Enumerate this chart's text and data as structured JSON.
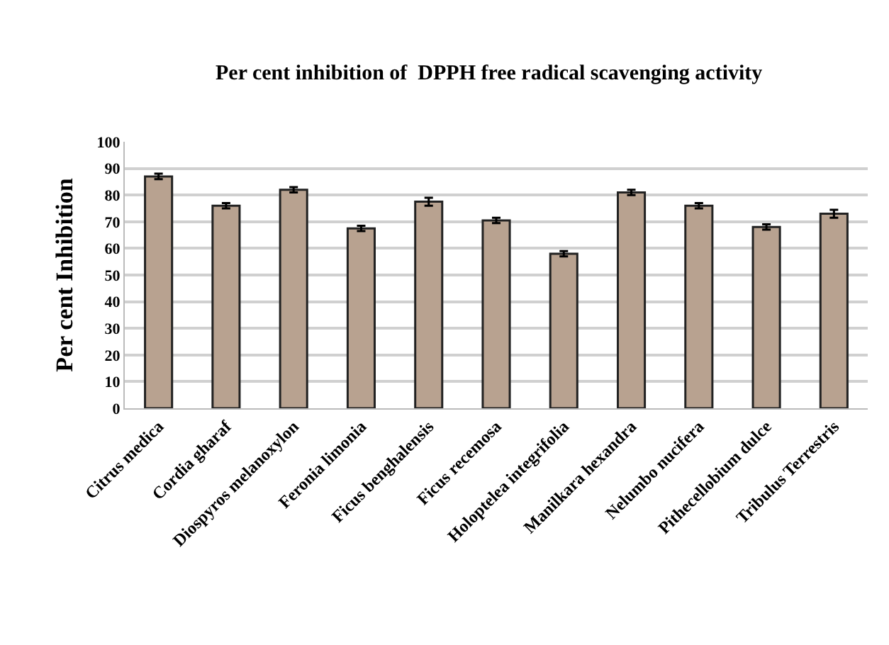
{
  "chart_data": {
    "type": "bar",
    "title": "Per cent inhibition of  DPPH free radical scavenging activity",
    "ylabel": "Per cent Inhibition",
    "categories": [
      "Citrus medica",
      "Cordia gharaf",
      "Diospyros melanoxylon",
      "Feronia limonia",
      "Ficus benghalensis",
      "Ficus recemosa",
      "Holoptelea integrifolia",
      "Manilkara hexandra",
      "Nelumbo nucifera",
      "Pithecellobium dulce",
      "Tribulus Terrestris"
    ],
    "values": [
      87,
      76,
      82,
      67.5,
      77.5,
      70.5,
      58,
      81,
      76,
      68,
      73
    ],
    "errors": [
      1,
      1,
      1,
      1,
      1.5,
      1,
      1,
      1,
      1,
      1,
      1.5
    ],
    "color": "#b8a290",
    "ylim": [
      0,
      100
    ],
    "yticks": [
      0,
      10,
      20,
      30,
      40,
      50,
      60,
      70,
      80,
      90,
      100
    ],
    "grid": "y"
  }
}
